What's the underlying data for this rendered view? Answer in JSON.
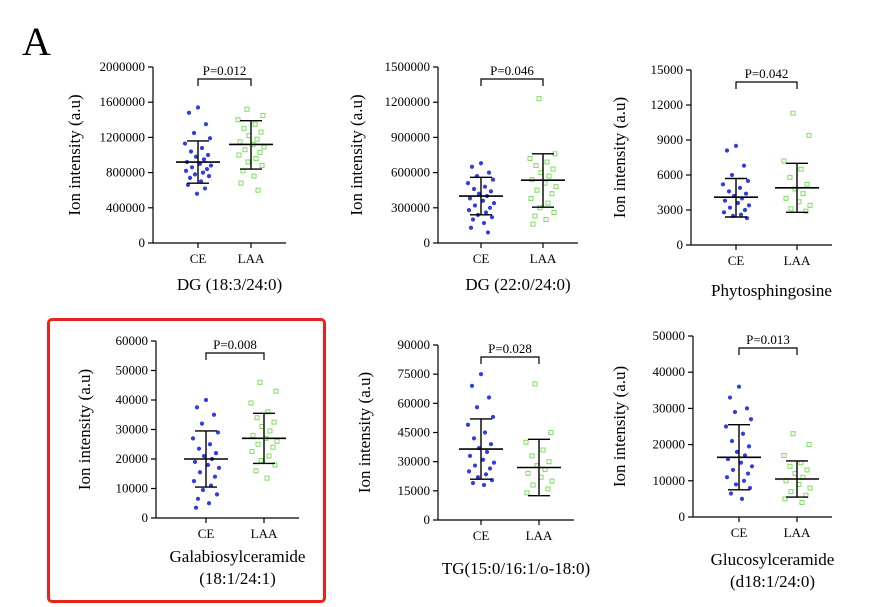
{
  "figure": {
    "panel_label": "A"
  },
  "colors": {
    "ce": "#2f3de6",
    "laa": "#7ddc60",
    "highlight": "#e8231d",
    "axis": "#000000"
  },
  "highlighted_chart_index": 3,
  "chart_data": [
    {
      "type": "scatter",
      "title": "DG (18:3/24:0)",
      "title_lines": [
        "DG (18:3/24:0)"
      ],
      "ylabel": "Ion intensity (a.u)",
      "categories": [
        "CE",
        "LAA"
      ],
      "ylim": [
        0,
        2000000
      ],
      "yticks": [
        0,
        400000,
        800000,
        1200000,
        1600000,
        2000000
      ],
      "ytick_labels": [
        "0",
        "400000",
        "800000",
        "1200000",
        "1600000",
        "2000000"
      ],
      "p_value": "P=0.012",
      "series": [
        {
          "name": "CE",
          "mean": 920000,
          "sd_low": 680000,
          "sd_high": 1160000,
          "values": [
            1540000,
            1480000,
            1350000,
            1250000,
            1190000,
            1130000,
            1080000,
            1040000,
            1000000,
            980000,
            950000,
            920000,
            900000,
            880000,
            860000,
            840000,
            820000,
            800000,
            780000,
            760000,
            740000,
            700000,
            660000,
            620000,
            560000
          ]
        },
        {
          "name": "LAA",
          "mean": 1120000,
          "sd_low": 840000,
          "sd_high": 1390000,
          "values": [
            1520000,
            1450000,
            1400000,
            1350000,
            1300000,
            1260000,
            1220000,
            1180000,
            1150000,
            1120000,
            1090000,
            1060000,
            1030000,
            1000000,
            960000,
            920000,
            880000,
            820000,
            760000,
            680000,
            600000
          ]
        }
      ]
    },
    {
      "type": "scatter",
      "title": "DG (22:0/24:0)",
      "title_lines": [
        "DG (22:0/24:0)"
      ],
      "ylabel": "Ion intensity (a.u)",
      "categories": [
        "CE",
        "LAA"
      ],
      "ylim": [
        0,
        1500000
      ],
      "yticks": [
        0,
        300000,
        600000,
        900000,
        1200000,
        1500000
      ],
      "ytick_labels": [
        "0",
        "300000",
        "600000",
        "900000",
        "1200000",
        "1500000"
      ],
      "p_value": "P=0.046",
      "series": [
        {
          "name": "CE",
          "mean": 400000,
          "sd_low": 240000,
          "sd_high": 560000,
          "values": [
            680000,
            650000,
            600000,
            570000,
            540000,
            510000,
            480000,
            460000,
            440000,
            420000,
            400000,
            380000,
            360000,
            340000,
            320000,
            300000,
            280000,
            260000,
            240000,
            220000,
            200000,
            170000,
            130000,
            90000
          ]
        },
        {
          "name": "LAA",
          "mean": 535000,
          "sd_low": 305000,
          "sd_high": 760000,
          "values": [
            1230000,
            760000,
            720000,
            690000,
            660000,
            630000,
            600000,
            570000,
            540000,
            510000,
            480000,
            450000,
            420000,
            380000,
            340000,
            300000,
            260000,
            230000,
            200000,
            160000
          ]
        }
      ]
    },
    {
      "type": "scatter",
      "title": "Phytosphingosine",
      "title_lines": [
        "Phytosphingosine"
      ],
      "ylabel": "Ion intensity (a.u)",
      "categories": [
        "CE",
        "LAA"
      ],
      "ylim": [
        0,
        15000
      ],
      "yticks": [
        0,
        3000,
        6000,
        9000,
        12000,
        15000
      ],
      "ytick_labels": [
        "0",
        "3000",
        "6000",
        "9000",
        "12000",
        "15000"
      ],
      "p_value": "P=0.042",
      "series": [
        {
          "name": "CE",
          "mean": 4100,
          "sd_low": 2400,
          "sd_high": 5700,
          "values": [
            8500,
            8100,
            6800,
            6000,
            5500,
            5200,
            4900,
            4600,
            4400,
            4200,
            4000,
            3800,
            3600,
            3400,
            3200,
            3000,
            2800,
            2600,
            2500,
            2300
          ]
        },
        {
          "name": "LAA",
          "mean": 4900,
          "sd_low": 2800,
          "sd_high": 7000,
          "values": [
            11300,
            9400,
            7200,
            6500,
            5800,
            5200,
            4800,
            4400,
            4000,
            3700,
            3400,
            3100,
            2900
          ]
        }
      ]
    },
    {
      "type": "scatter",
      "title": "Galabiosylceramide (18:1/24:1)",
      "title_lines": [
        "Galabiosylceramide",
        "(18:1/24:1)"
      ],
      "ylabel": "Ion intensity (a.u)",
      "categories": [
        "CE",
        "LAA"
      ],
      "ylim": [
        0,
        60000
      ],
      "yticks": [
        0,
        10000,
        20000,
        30000,
        40000,
        50000,
        60000
      ],
      "ytick_labels": [
        "0",
        "10000",
        "20000",
        "30000",
        "40000",
        "50000",
        "60000"
      ],
      "p_value": "P=0.008",
      "series": [
        {
          "name": "CE",
          "mean": 20000,
          "sd_low": 10500,
          "sd_high": 29500,
          "values": [
            40000,
            37500,
            35000,
            32000,
            29000,
            27000,
            25000,
            23500,
            22000,
            21000,
            20000,
            19000,
            18000,
            17000,
            15500,
            14000,
            12500,
            11000,
            9500,
            8000,
            6500,
            5000,
            3500
          ]
        },
        {
          "name": "LAA",
          "mean": 27000,
          "sd_low": 18500,
          "sd_high": 35500,
          "values": [
            46000,
            43000,
            39000,
            36000,
            34000,
            32500,
            31000,
            29500,
            28000,
            27000,
            26000,
            25000,
            24000,
            22500,
            21000,
            19500,
            18000,
            16000,
            13500
          ]
        }
      ]
    },
    {
      "type": "scatter",
      "title": "TG(15:0/16:1/o-18:0)",
      "title_lines": [
        "TG(15:0/16:1/o-18:0)"
      ],
      "ylabel": "Ion intensity (a.u)",
      "categories": [
        "CE",
        "LAA"
      ],
      "ylim": [
        0,
        90000
      ],
      "yticks": [
        0,
        15000,
        30000,
        45000,
        60000,
        75000,
        90000
      ],
      "ytick_labels": [
        "0",
        "15000",
        "30000",
        "45000",
        "60000",
        "75000",
        "90000"
      ],
      "p_value": "P=0.028",
      "series": [
        {
          "name": "CE",
          "mean": 36500,
          "sd_low": 21000,
          "sd_high": 52000,
          "values": [
            75000,
            69000,
            63000,
            58000,
            53000,
            49000,
            45000,
            42000,
            39000,
            37000,
            35000,
            33000,
            31000,
            29500,
            28000,
            26500,
            25000,
            23500,
            22000,
            20500,
            19000,
            18000
          ]
        },
        {
          "name": "LAA",
          "mean": 27000,
          "sd_low": 12500,
          "sd_high": 41500,
          "values": [
            70000,
            45000,
            40000,
            36000,
            33000,
            30000,
            28000,
            26000,
            24000,
            22000,
            20000,
            18000,
            16000,
            14000
          ]
        }
      ]
    },
    {
      "type": "scatter",
      "title": "Glucosylceramide (d18:1/24:0)",
      "title_lines": [
        "Glucosylceramide",
        "(d18:1/24:0)"
      ],
      "ylabel": "Ion intensity (a.u)",
      "categories": [
        "CE",
        "LAA"
      ],
      "ylim": [
        0,
        50000
      ],
      "yticks": [
        0,
        10000,
        20000,
        30000,
        40000,
        50000
      ],
      "ytick_labels": [
        "0",
        "10000",
        "20000",
        "30000",
        "40000",
        "50000"
      ],
      "p_value": "P=0.013",
      "series": [
        {
          "name": "CE",
          "mean": 16500,
          "sd_low": 7500,
          "sd_high": 25500,
          "values": [
            36000,
            33000,
            30000,
            29000,
            27000,
            25000,
            23000,
            21000,
            19500,
            18000,
            17000,
            16000,
            15000,
            14000,
            13000,
            12000,
            11000,
            10000,
            9000,
            8000,
            6500,
            5000
          ]
        },
        {
          "name": "LAA",
          "mean": 10500,
          "sd_low": 5500,
          "sd_high": 15500,
          "values": [
            23000,
            20000,
            17000,
            15000,
            14000,
            13000,
            12000,
            11000,
            10000,
            9000,
            8000,
            7000,
            6000,
            5000,
            4000
          ]
        }
      ]
    }
  ]
}
